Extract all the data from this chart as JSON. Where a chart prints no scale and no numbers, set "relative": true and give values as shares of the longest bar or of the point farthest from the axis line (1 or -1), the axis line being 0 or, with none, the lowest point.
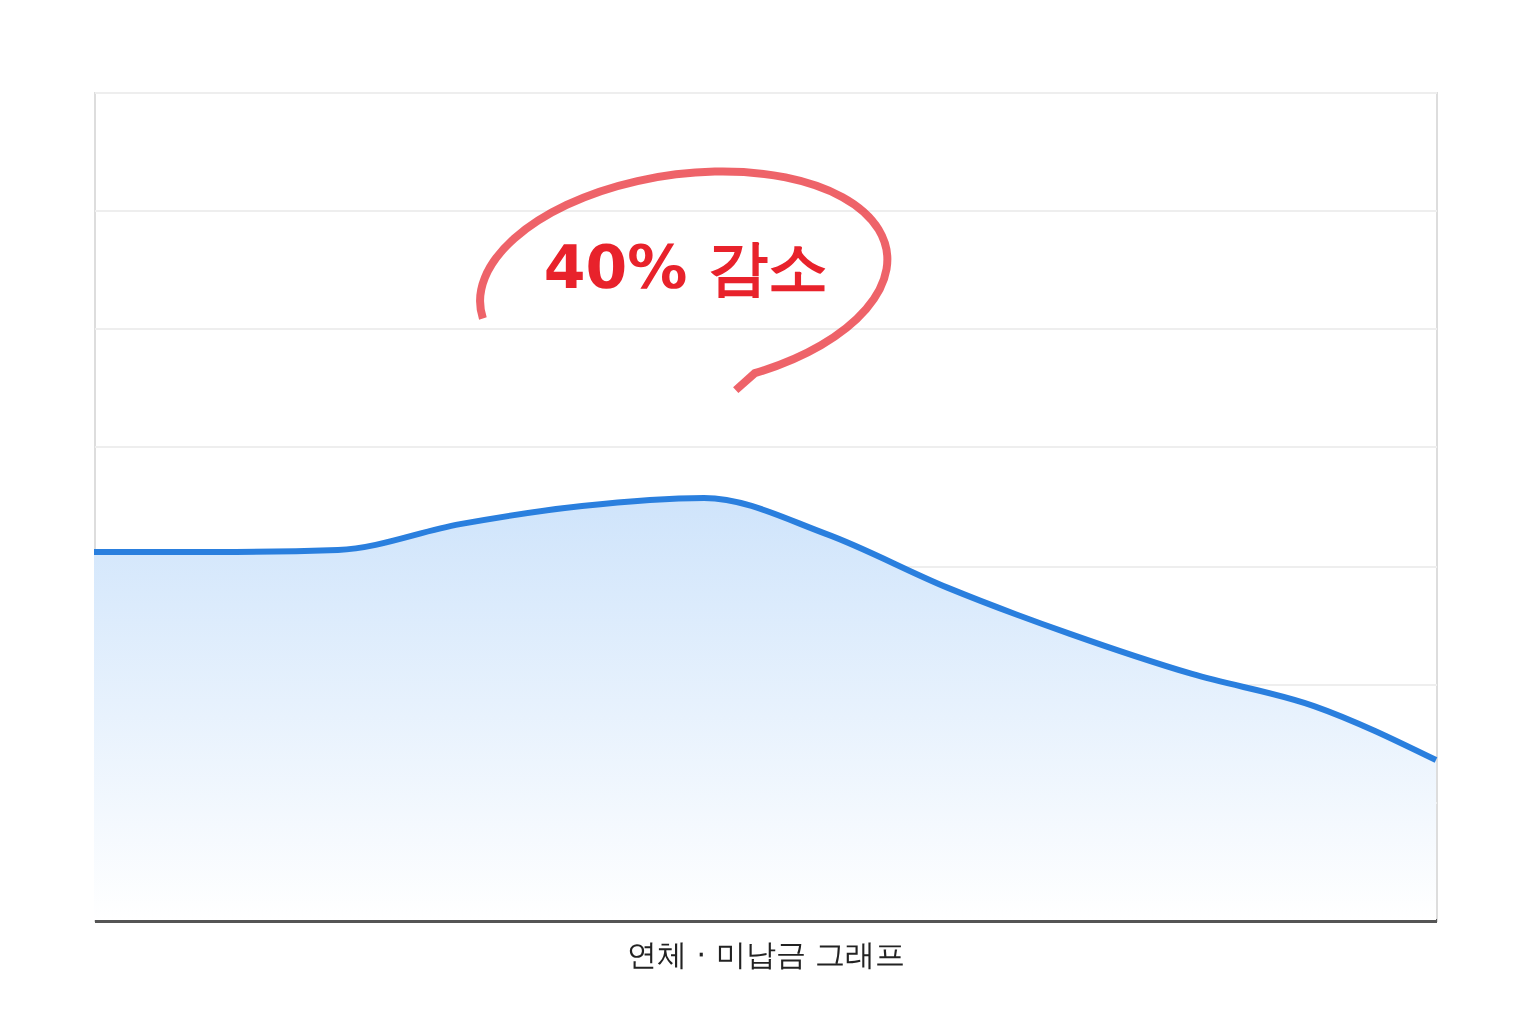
{
  "chart_data": {
    "type": "area",
    "relative": true,
    "xlabel": "연체 · 미납금 그래프",
    "categories": [
      null,
      null,
      null,
      null,
      null,
      null,
      null,
      null,
      null,
      null,
      null,
      null
    ],
    "series": [
      {
        "color": "#2a7fde",
        "values": [
          0.872,
          0.872,
          0.877,
          0.938,
          0.981,
          1,
          0.915,
          0.787,
          0.678,
          0.583,
          0.507,
          0.379
        ]
      }
    ],
    "annotations": [
      "40% 감소"
    ],
    "grid": "y"
  }
}
